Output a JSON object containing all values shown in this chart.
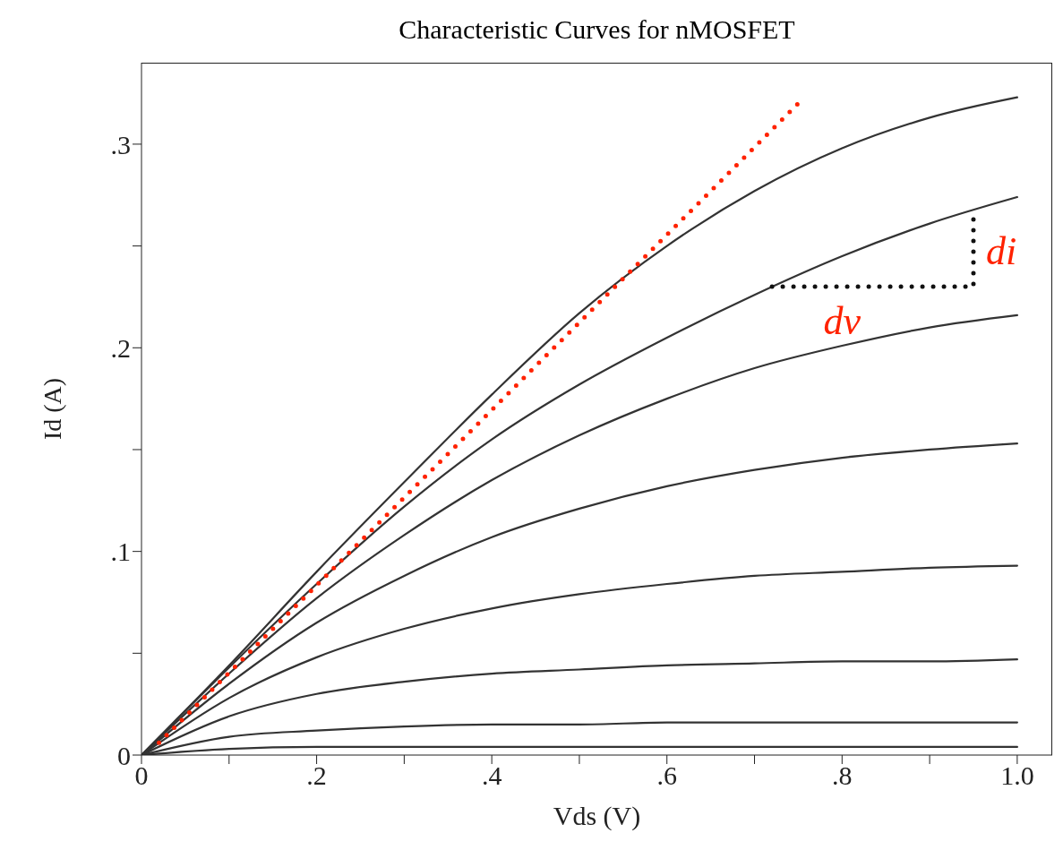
{
  "chart_data": {
    "type": "line",
    "title": "Characteristic Curves for nMOSFET",
    "xlabel": "Vds (V)",
    "ylabel": "Id (A)",
    "x": [
      0,
      0.1,
      0.2,
      0.3,
      0.4,
      0.5,
      0.6,
      0.7,
      0.8,
      0.9,
      1.0
    ],
    "series": [
      {
        "color": "#333333",
        "values": [
          0,
          0.044,
          0.09,
          0.134,
          0.177,
          0.217,
          0.25,
          0.277,
          0.298,
          0.313,
          0.323
        ]
      },
      {
        "color": "#333333",
        "values": [
          0,
          0.043,
          0.084,
          0.122,
          0.155,
          0.182,
          0.205,
          0.226,
          0.245,
          0.261,
          0.274
        ]
      },
      {
        "color": "#333333",
        "values": [
          0,
          0.04,
          0.077,
          0.108,
          0.135,
          0.157,
          0.175,
          0.19,
          0.201,
          0.21,
          0.216
        ]
      },
      {
        "color": "#333333",
        "values": [
          0,
          0.035,
          0.065,
          0.088,
          0.107,
          0.121,
          0.132,
          0.14,
          0.146,
          0.15,
          0.153
        ]
      },
      {
        "color": "#333333",
        "values": [
          0,
          0.028,
          0.048,
          0.062,
          0.072,
          0.079,
          0.084,
          0.088,
          0.09,
          0.092,
          0.093
        ]
      },
      {
        "color": "#333333",
        "values": [
          0,
          0.019,
          0.03,
          0.036,
          0.04,
          0.042,
          0.044,
          0.045,
          0.046,
          0.046,
          0.047
        ]
      },
      {
        "color": "#333333",
        "values": [
          0,
          0.009,
          0.012,
          0.014,
          0.015,
          0.015,
          0.016,
          0.016,
          0.016,
          0.016,
          0.016
        ]
      },
      {
        "color": "#333333",
        "values": [
          0,
          0.003,
          0.004,
          0.004,
          0.004,
          0.004,
          0.004,
          0.004,
          0.004,
          0.004,
          0.004
        ]
      },
      {
        "color": "#ff2200",
        "line_style": "dotted",
        "x": [
          0.02,
          0.75
        ],
        "values": [
          0.006,
          0.32
        ]
      },
      {
        "color": "#111111",
        "line_style": "dotted",
        "x": [
          0.72,
          0.95,
          0.95
        ],
        "values": [
          0.23,
          0.23,
          0.266
        ]
      }
    ],
    "annotations": [
      {
        "text": "dv",
        "x": 0.8,
        "y": 0.23
      },
      {
        "text": "di",
        "x": 0.95,
        "y": 0.248
      }
    ],
    "xlim": [
      0,
      1.04
    ],
    "xticks": [
      0,
      {
        "value": 0.1,
        "label": null
      },
      {
        "value": 0.2,
        "label": ".2"
      },
      {
        "value": 0.3,
        "label": null
      },
      {
        "value": 0.4,
        "label": ".4"
      },
      {
        "value": 0.5,
        "label": null
      },
      {
        "value": 0.6,
        "label": ".6"
      },
      {
        "value": 0.7,
        "label": null
      },
      {
        "value": 0.8,
        "label": ".8"
      },
      {
        "value": 0.9,
        "label": null
      },
      {
        "value": 1.0,
        "label": "1.0"
      }
    ],
    "ylim": [
      0,
      0.34
    ],
    "yticks": [
      0,
      {
        "value": 0.05,
        "label": null
      },
      {
        "value": 0.1,
        "label": ".1"
      },
      {
        "value": 0.15,
        "label": null
      },
      {
        "value": 0.2,
        "label": ".2"
      },
      {
        "value": 0.25,
        "label": null
      },
      {
        "value": 0.3,
        "label": ".3"
      }
    ]
  }
}
